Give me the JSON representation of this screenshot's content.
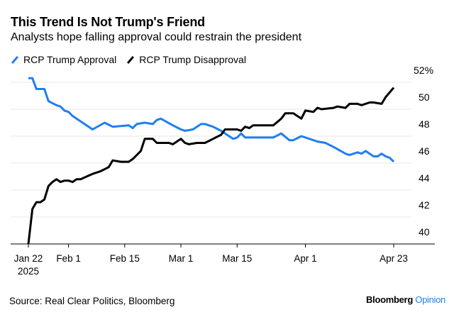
{
  "chart_data": {
    "type": "line",
    "title": "This Trend Is Not Trump's Friend",
    "subtitle": "Analysts hope falling approval could restrain the president",
    "ylim": [
      40,
      52
    ],
    "yticks": [
      {
        "value": 52,
        "label": "52%"
      },
      {
        "value": 50,
        "label": "50"
      },
      {
        "value": 48,
        "label": "48"
      },
      {
        "value": 46,
        "label": "46"
      },
      {
        "value": 44,
        "label": "44"
      },
      {
        "value": 42,
        "label": "42"
      },
      {
        "value": 40,
        "label": "40"
      }
    ],
    "xlim": [
      "2025-01-22",
      "2025-04-23"
    ],
    "xticks": [
      {
        "value": "2025-01-22",
        "label": "Jan 22",
        "label2": "2025"
      },
      {
        "value": "2025-02-01",
        "label": "Feb 1"
      },
      {
        "value": "2025-02-15",
        "label": "Feb 15"
      },
      {
        "value": "2025-03-01",
        "label": "Mar 1"
      },
      {
        "value": "2025-03-15",
        "label": "Mar 15"
      },
      {
        "value": "2025-04-01",
        "label": "Apr 1"
      },
      {
        "value": "2025-04-23",
        "label": "Apr 23"
      }
    ],
    "grid": true,
    "legend_placement": "top-left",
    "series": [
      {
        "name": "RCP Trump Approval",
        "color": "#1f7ff0",
        "points": [
          [
            "2025-01-22",
            52.3
          ],
          [
            "2025-01-23",
            52.3
          ],
          [
            "2025-01-24",
            51.5
          ],
          [
            "2025-01-26",
            51.5
          ],
          [
            "2025-01-27",
            50.6
          ],
          [
            "2025-01-29",
            50.3
          ],
          [
            "2025-01-30",
            50.2
          ],
          [
            "2025-01-31",
            49.9
          ],
          [
            "2025-02-01",
            49.8
          ],
          [
            "2025-02-02",
            49.5
          ],
          [
            "2025-02-04",
            49.1
          ],
          [
            "2025-02-07",
            48.5
          ],
          [
            "2025-02-10",
            49.0
          ],
          [
            "2025-02-12",
            48.7
          ],
          [
            "2025-02-16",
            48.8
          ],
          [
            "2025-02-17",
            48.6
          ],
          [
            "2025-02-18",
            48.9
          ],
          [
            "2025-02-20",
            49.0
          ],
          [
            "2025-02-22",
            48.9
          ],
          [
            "2025-02-23",
            49.2
          ],
          [
            "2025-02-24",
            49.3
          ],
          [
            "2025-02-27",
            48.8
          ],
          [
            "2025-03-01",
            48.5
          ],
          [
            "2025-03-02",
            48.4
          ],
          [
            "2025-03-04",
            48.5
          ],
          [
            "2025-03-06",
            48.9
          ],
          [
            "2025-03-07",
            48.9
          ],
          [
            "2025-03-09",
            48.7
          ],
          [
            "2025-03-11",
            48.4
          ],
          [
            "2025-03-13",
            48.0
          ],
          [
            "2025-03-14",
            47.8
          ],
          [
            "2025-03-15",
            47.9
          ],
          [
            "2025-03-16",
            48.2
          ],
          [
            "2025-03-17",
            47.9
          ],
          [
            "2025-03-24",
            47.9
          ],
          [
            "2025-03-26",
            48.2
          ],
          [
            "2025-03-28",
            47.7
          ],
          [
            "2025-03-29",
            47.7
          ],
          [
            "2025-03-31",
            48.0
          ],
          [
            "2025-04-04",
            47.6
          ],
          [
            "2025-04-06",
            47.5
          ],
          [
            "2025-04-08",
            47.2
          ],
          [
            "2025-04-11",
            46.7
          ],
          [
            "2025-04-12",
            46.6
          ],
          [
            "2025-04-14",
            46.8
          ],
          [
            "2025-04-15",
            46.7
          ],
          [
            "2025-04-16",
            46.9
          ],
          [
            "2025-04-18",
            46.5
          ],
          [
            "2025-04-19",
            46.5
          ],
          [
            "2025-04-20",
            46.7
          ],
          [
            "2025-04-21",
            46.5
          ],
          [
            "2025-04-22",
            46.4
          ],
          [
            "2025-04-23",
            46.1
          ]
        ]
      },
      {
        "name": "RCP Trump Disapproval",
        "color": "#000000",
        "points": [
          [
            "2025-01-22",
            40.0
          ],
          [
            "2025-01-23",
            42.6
          ],
          [
            "2025-01-24",
            43.1
          ],
          [
            "2025-01-25",
            43.1
          ],
          [
            "2025-01-26",
            43.3
          ],
          [
            "2025-01-27",
            44.3
          ],
          [
            "2025-01-28",
            44.6
          ],
          [
            "2025-01-29",
            44.8
          ],
          [
            "2025-01-30",
            44.6
          ],
          [
            "2025-01-31",
            44.7
          ],
          [
            "2025-02-01",
            44.7
          ],
          [
            "2025-02-02",
            44.6
          ],
          [
            "2025-02-03",
            44.8
          ],
          [
            "2025-02-04",
            44.8
          ],
          [
            "2025-02-07",
            45.2
          ],
          [
            "2025-02-09",
            45.4
          ],
          [
            "2025-02-11",
            45.7
          ],
          [
            "2025-02-12",
            46.2
          ],
          [
            "2025-02-14",
            46.1
          ],
          [
            "2025-02-16",
            46.1
          ],
          [
            "2025-02-17",
            46.3
          ],
          [
            "2025-02-19",
            46.9
          ],
          [
            "2025-02-20",
            47.8
          ],
          [
            "2025-02-22",
            47.8
          ],
          [
            "2025-02-23",
            47.5
          ],
          [
            "2025-02-26",
            47.5
          ],
          [
            "2025-02-27",
            47.4
          ],
          [
            "2025-03-01",
            47.8
          ],
          [
            "2025-03-02",
            47.5
          ],
          [
            "2025-03-03",
            47.4
          ],
          [
            "2025-03-05",
            47.5
          ],
          [
            "2025-03-07",
            47.5
          ],
          [
            "2025-03-09",
            47.8
          ],
          [
            "2025-03-11",
            48.1
          ],
          [
            "2025-03-12",
            48.5
          ],
          [
            "2025-03-15",
            48.5
          ],
          [
            "2025-03-16",
            48.4
          ],
          [
            "2025-03-17",
            48.7
          ],
          [
            "2025-03-18",
            48.6
          ],
          [
            "2025-03-19",
            48.8
          ],
          [
            "2025-03-24",
            48.8
          ],
          [
            "2025-03-26",
            49.3
          ],
          [
            "2025-03-27",
            49.7
          ],
          [
            "2025-03-29",
            49.7
          ],
          [
            "2025-03-31",
            49.3
          ],
          [
            "2025-04-01",
            49.9
          ],
          [
            "2025-04-03",
            49.8
          ],
          [
            "2025-04-04",
            50.1
          ],
          [
            "2025-04-05",
            50.0
          ],
          [
            "2025-04-08",
            50.1
          ],
          [
            "2025-04-09",
            50.2
          ],
          [
            "2025-04-11",
            50.1
          ],
          [
            "2025-04-12",
            50.4
          ],
          [
            "2025-04-14",
            50.4
          ],
          [
            "2025-04-15",
            50.3
          ],
          [
            "2025-04-17",
            50.5
          ],
          [
            "2025-04-18",
            50.5
          ],
          [
            "2025-04-20",
            50.4
          ],
          [
            "2025-04-21",
            50.9
          ],
          [
            "2025-04-23",
            51.6
          ]
        ]
      }
    ]
  },
  "footer": {
    "source": "Source: Real Clear Politics, Bloomberg",
    "logo_brand": "Bloomberg",
    "logo_section": "Opinion"
  }
}
